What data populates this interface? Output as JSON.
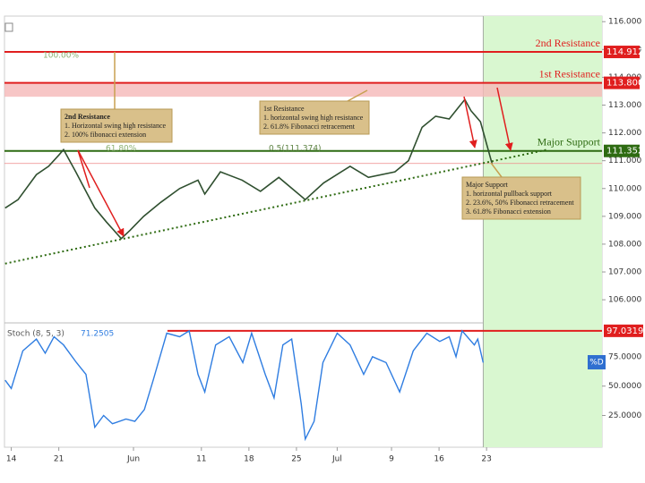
{
  "chart_data": [
    {
      "type": "line",
      "name": "price",
      "x": [
        -0.9,
        1,
        3.7,
        5.5,
        7,
        7.7,
        9.5,
        11,
        12.3,
        14,
        16.2,
        17.5,
        19.5,
        22,
        24.8,
        27.5,
        28.5,
        30.8,
        34,
        36.7,
        39.4,
        43.3,
        46,
        49.9,
        52.6,
        56.5,
        58.5,
        60.5,
        62.5,
        64.5,
        65.8,
        66.8,
        67.7,
        69.1,
        70.8
      ],
      "values": [
        109.3,
        109.6,
        110.5,
        110.8,
        111.2,
        111.4,
        110.6,
        109.9,
        109.3,
        108.8,
        108.2,
        108.5,
        109,
        109.5,
        110,
        110.3,
        109.8,
        110.6,
        110.3,
        109.9,
        110.4,
        109.6,
        110.2,
        110.8,
        110.4,
        110.6,
        111.0,
        112.2,
        112.6,
        112.5,
        112.9,
        113.2,
        112.8,
        112.4,
        110.9
      ],
      "color": "#2f4f2f",
      "xlim": [
        -1,
        87
      ],
      "xticks": [
        {
          "value": 0,
          "label": "14"
        },
        {
          "value": 7,
          "label": "21"
        },
        {
          "value": 18,
          "label": "Jun"
        },
        {
          "value": 28,
          "label": "11"
        },
        {
          "value": 35,
          "label": "18"
        },
        {
          "value": 42,
          "label": "25"
        },
        {
          "value": 48,
          "label": "Jul"
        },
        {
          "value": 56,
          "label": "9"
        },
        {
          "value": 63,
          "label": "16"
        },
        {
          "value": 70,
          "label": "23"
        }
      ],
      "ylim": [
        105.2,
        116.2
      ],
      "yticks": [
        {
          "value": 106,
          "label": "106.000"
        },
        {
          "value": 107,
          "label": "107.000"
        },
        {
          "value": 108,
          "label": "108.000"
        },
        {
          "value": 109,
          "label": "109.000"
        },
        {
          "value": 110,
          "label": "110.000"
        },
        {
          "value": 111,
          "label": "111.000"
        },
        {
          "value": 112,
          "label": "112.000"
        },
        {
          "value": 113,
          "label": "113.000"
        },
        {
          "value": 114,
          "label": "114.000"
        },
        {
          "value": 115,
          "label": "115.000"
        },
        {
          "value": 116,
          "label": "116.000"
        }
      ],
      "levels": [
        {
          "name": "2nd Resistance",
          "value": 114.912,
          "label": "114.912",
          "color": "#e01e1e"
        },
        {
          "name": "1st Resistance",
          "value": 113.8,
          "label": "113.800",
          "color": "#e01e1e"
        },
        {
          "name": "Major Support",
          "value": 111.352,
          "label": "111.352",
          "color": "#2e6b12"
        }
      ],
      "minor_level": 110.9,
      "zone": [
        113.3,
        113.8
      ],
      "trendline": {
        "x": [
          -0.9,
          79
        ],
        "values": [
          107.3,
          111.4
        ]
      },
      "shade_from": 69.5,
      "annotations": [
        [
          "2nd Resistance",
          "1. Horizontal swing high resistance",
          "2. 100% fibonacci extension"
        ],
        [
          "1st Resistance",
          "1. horizontal swing high resistance",
          "2. 61.8% Fibonacci retracement"
        ],
        [
          "Major Support",
          "1. horizontal pullback support",
          "2. 23.6%, 50% Fibonacci retracement",
          "3. 61.8% Fibonacci extension"
        ]
      ],
      "fib_labels": [
        "100.00%",
        "61.80%",
        "0.5(111.374)"
      ]
    },
    {
      "type": "line",
      "name": "stochastic",
      "legend": "Stoch (8, 5, 3)",
      "legend_value": "71.2505",
      "series_label": "%D",
      "x": [
        -0.9,
        0,
        1.7,
        3.7,
        5,
        6.3,
        7.7,
        9.6,
        11,
        12.3,
        13.6,
        14.9,
        16.9,
        18.2,
        19.6,
        20.9,
        22.9,
        24.8,
        26.2,
        27.5,
        28.5,
        30.1,
        32.1,
        34.1,
        35.4,
        37.4,
        38.7,
        40,
        41.3,
        42.7,
        43.3,
        44.6,
        45.9,
        48,
        49.9,
        51.9,
        53.2,
        55.2,
        57.2,
        59.2,
        61.2,
        63.1,
        64.5,
        65.5,
        66.4,
        68.2,
        68.7,
        69.5
      ],
      "values": [
        55,
        48,
        80,
        90,
        78,
        92,
        85,
        70,
        60,
        15,
        25,
        18,
        22,
        20,
        30,
        55,
        95,
        92,
        97,
        60,
        45,
        85,
        92,
        70,
        95,
        60,
        40,
        85,
        90,
        35,
        5,
        20,
        70,
        95,
        85,
        60,
        75,
        70,
        45,
        80,
        95,
        88,
        92,
        75,
        97,
        85,
        90,
        70
      ],
      "color": "#2f7de1",
      "ylim": [
        -2,
        103
      ],
      "yticks": [
        {
          "value": 25,
          "label": "25.0000"
        },
        {
          "value": 50,
          "label": "50.0000"
        },
        {
          "value": 75,
          "label": "75.0000"
        }
      ],
      "level": 97.0319,
      "level_color": "#e01e1e"
    }
  ]
}
